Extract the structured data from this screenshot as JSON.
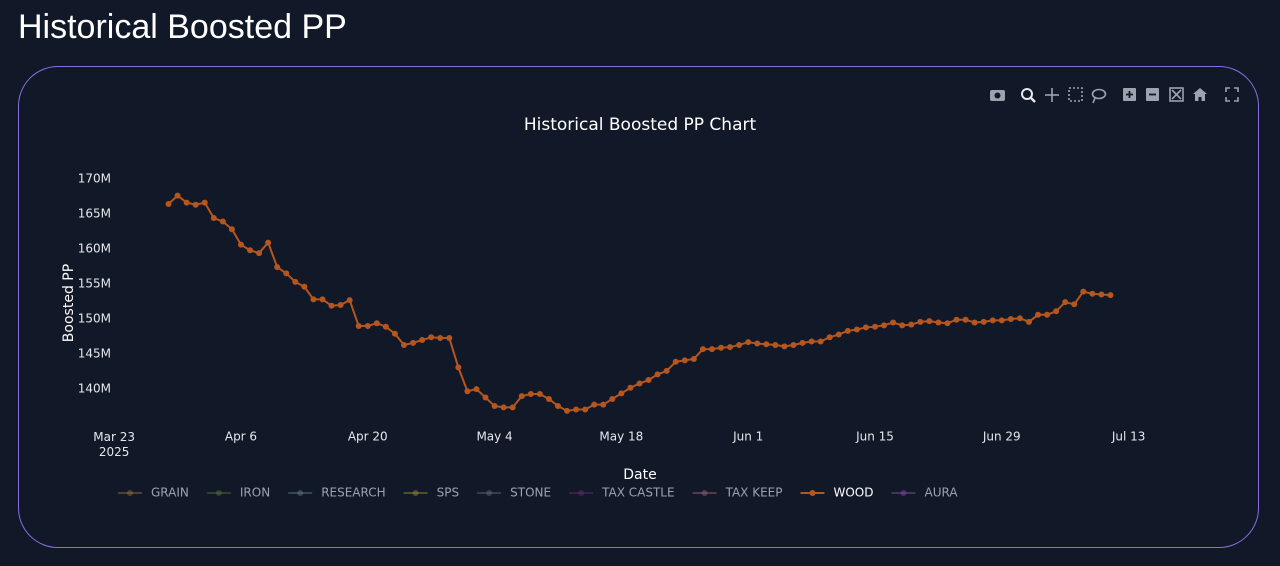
{
  "title": "Historical Boosted PP",
  "chart_data": {
    "type": "line",
    "title": "Historical Boosted PP Chart",
    "x_label": "Date",
    "y_label": "Boosted PP",
    "x": [
      "2025-03-29",
      "2025-03-30",
      "2025-03-31",
      "2025-04-01",
      "2025-04-02",
      "2025-04-03",
      "2025-04-04",
      "2025-04-05",
      "2025-04-06",
      "2025-04-07",
      "2025-04-08",
      "2025-04-09",
      "2025-04-10",
      "2025-04-11",
      "2025-04-12",
      "2025-04-13",
      "2025-04-14",
      "2025-04-15",
      "2025-04-16",
      "2025-04-17",
      "2025-04-18",
      "2025-04-19",
      "2025-04-20",
      "2025-04-21",
      "2025-04-22",
      "2025-04-23",
      "2025-04-24",
      "2025-04-25",
      "2025-04-26",
      "2025-04-27",
      "2025-04-28",
      "2025-04-29",
      "2025-04-30",
      "2025-05-01",
      "2025-05-02",
      "2025-05-03",
      "2025-05-04",
      "2025-05-05",
      "2025-05-06",
      "2025-05-07",
      "2025-05-08",
      "2025-05-09",
      "2025-05-10",
      "2025-05-11",
      "2025-05-12",
      "2025-05-13",
      "2025-05-14",
      "2025-05-15",
      "2025-05-16",
      "2025-05-17",
      "2025-05-18",
      "2025-05-19",
      "2025-05-20",
      "2025-05-21",
      "2025-05-22",
      "2025-05-23",
      "2025-05-24",
      "2025-05-25",
      "2025-05-26",
      "2025-05-27",
      "2025-05-28",
      "2025-05-29",
      "2025-05-30",
      "2025-05-31",
      "2025-06-01",
      "2025-06-02",
      "2025-06-03",
      "2025-06-04",
      "2025-06-05",
      "2025-06-06",
      "2025-06-07",
      "2025-06-08",
      "2025-06-09",
      "2025-06-10",
      "2025-06-11",
      "2025-06-12",
      "2025-06-13",
      "2025-06-14",
      "2025-06-15",
      "2025-06-16",
      "2025-06-17",
      "2025-06-18",
      "2025-06-19",
      "2025-06-20",
      "2025-06-21",
      "2025-06-22",
      "2025-06-23",
      "2025-06-24",
      "2025-06-25",
      "2025-06-26",
      "2025-06-27",
      "2025-06-28",
      "2025-06-29",
      "2025-06-30",
      "2025-07-01",
      "2025-07-02",
      "2025-07-03",
      "2025-07-04",
      "2025-07-05",
      "2025-07-06",
      "2025-07-07",
      "2025-07-08",
      "2025-07-09",
      "2025-07-10",
      "2025-07-11"
    ],
    "series": [
      {
        "name": "GRAIN",
        "color": "#8c6a3f",
        "visible": false
      },
      {
        "name": "IRON",
        "color": "#4f6b3a",
        "visible": false
      },
      {
        "name": "RESEARCH",
        "color": "#5b7384",
        "visible": false
      },
      {
        "name": "SPS",
        "color": "#8a8a2e",
        "visible": false
      },
      {
        "name": "STONE",
        "color": "#5b6573",
        "visible": false
      },
      {
        "name": "TAX CASTLE",
        "color": "#5c2d6b",
        "visible": false
      },
      {
        "name": "TAX KEEP",
        "color": "#8a6172",
        "visible": false
      },
      {
        "name": "WOOD",
        "color": "#b5561f",
        "visible": true,
        "values": [
          166400000,
          167600000,
          166600000,
          166300000,
          166600000,
          164400000,
          163900000,
          162800000,
          160600000,
          159800000,
          159400000,
          160900000,
          157400000,
          156500000,
          155300000,
          154600000,
          152800000,
          152800000,
          151900000,
          152000000,
          152700000,
          149000000,
          149000000,
          149400000,
          148900000,
          147900000,
          146300000,
          146600000,
          147000000,
          147400000,
          147300000,
          147300000,
          143100000,
          139700000,
          140000000,
          138800000,
          137600000,
          137400000,
          137400000,
          139000000,
          139300000,
          139300000,
          138600000,
          137600000,
          136900000,
          137100000,
          137100000,
          137800000,
          137800000,
          138600000,
          139400000,
          140200000,
          140800000,
          141300000,
          142100000,
          142600000,
          143900000,
          144100000,
          144300000,
          145700000,
          145700000,
          145900000,
          146000000,
          146300000,
          146700000,
          146500000,
          146400000,
          146300000,
          146100000,
          146300000,
          146600000,
          146800000,
          146800000,
          147400000,
          147800000,
          148300000,
          148500000,
          148800000,
          148900000,
          149100000,
          149500000,
          149100000,
          149200000,
          149600000,
          149700000,
          149500000,
          149400000,
          149900000,
          149900000,
          149500000,
          149600000,
          149800000,
          149800000,
          150000000,
          150100000,
          149600000,
          150600000,
          150600000,
          151100000,
          152400000,
          152100000,
          153900000,
          153600000,
          153500000,
          153400000
        ]
      },
      {
        "name": "AURA",
        "color": "#7b4a9b",
        "visible": false
      }
    ],
    "xlim": [
      "2025-03-20",
      "2025-07-20"
    ],
    "xticks": [
      {
        "value": "2025-03-23",
        "label": "Mar 23\n2025"
      },
      {
        "value": "2025-04-06",
        "label": "Apr 6"
      },
      {
        "value": "2025-04-20",
        "label": "Apr 20"
      },
      {
        "value": "2025-05-04",
        "label": "May 4"
      },
      {
        "value": "2025-05-18",
        "label": "May 18"
      },
      {
        "value": "2025-06-01",
        "label": "Jun 1"
      },
      {
        "value": "2025-06-15",
        "label": "Jun 15"
      },
      {
        "value": "2025-06-29",
        "label": "Jun 29"
      },
      {
        "value": "2025-07-13",
        "label": "Jul 13"
      }
    ],
    "ylim": [
      135600000,
      174100000
    ],
    "yticks": [
      {
        "value": 140000000,
        "label": "140M"
      },
      {
        "value": 145000000,
        "label": "145M"
      },
      {
        "value": 150000000,
        "label": "150M"
      },
      {
        "value": 155000000,
        "label": "155M"
      },
      {
        "value": 160000000,
        "label": "160M"
      },
      {
        "value": 165000000,
        "label": "165M"
      },
      {
        "value": 170000000,
        "label": "170M"
      }
    ],
    "grid": false,
    "legend": "bottom-left"
  }
}
